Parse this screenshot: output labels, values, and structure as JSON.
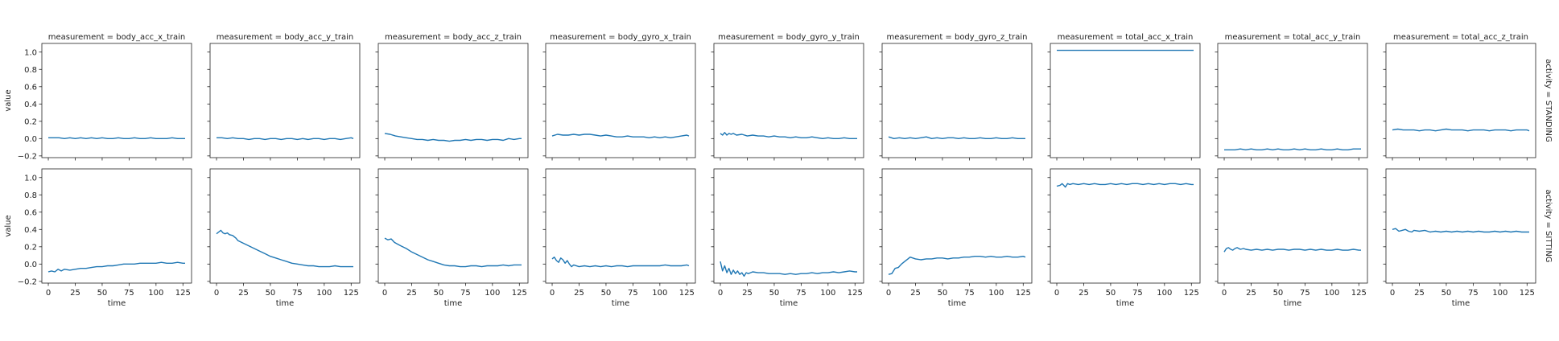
{
  "figure": {
    "axis_text_color": "#222222",
    "line_color": "#1f77b4"
  },
  "chart_data": {
    "type": "line",
    "facet_col_var": "measurement",
    "facet_row_var": "activity",
    "xlabel": "time",
    "ylabel": "value",
    "xlim": [
      -6,
      133
    ],
    "ylim": [
      -0.22,
      1.1
    ],
    "x_ticks": [
      0,
      25,
      50,
      75,
      100,
      125
    ],
    "y_ticks": [
      -0.2,
      0.0,
      0.2,
      0.4,
      0.6,
      0.8,
      1.0
    ],
    "y_tick_labels": [
      "−0.2",
      "0.0",
      "0.2",
      "0.4",
      "0.6",
      "0.8",
      "1.0"
    ],
    "columns": [
      {
        "title": "measurement = body_acc_x_train"
      },
      {
        "title": "measurement = body_acc_y_train"
      },
      {
        "title": "measurement = body_acc_z_train"
      },
      {
        "title": "measurement = body_gyro_x_train"
      },
      {
        "title": "measurement = body_gyro_y_train"
      },
      {
        "title": "measurement = body_gyro_z_train"
      },
      {
        "title": "measurement = total_acc_x_train"
      },
      {
        "title": "measurement = total_acc_y_train"
      },
      {
        "title": "measurement = total_acc_z_train"
      }
    ],
    "rows": [
      {
        "title": "activity = STANDING"
      },
      {
        "title": "activity = SITTING"
      }
    ],
    "series": [
      {
        "x": [
          0,
          5,
          10,
          15,
          20,
          25,
          30,
          35,
          40,
          45,
          50,
          55,
          60,
          65,
          70,
          75,
          80,
          85,
          90,
          95,
          100,
          105,
          110,
          115,
          120,
          125,
          127
        ],
        "y": [
          0.01,
          0.01,
          0.01,
          0.0,
          0.01,
          0.0,
          0.01,
          0.0,
          0.01,
          0.0,
          0.01,
          0.0,
          0.0,
          0.01,
          0.0,
          0.0,
          0.01,
          0.0,
          0.0,
          0.01,
          0.0,
          0.0,
          0.0,
          0.01,
          0.0,
          0.0,
          0.0
        ]
      },
      {
        "x": [
          0,
          5,
          10,
          15,
          20,
          25,
          30,
          35,
          40,
          45,
          50,
          55,
          60,
          65,
          70,
          75,
          80,
          85,
          90,
          95,
          100,
          105,
          110,
          115,
          120,
          125,
          127
        ],
        "y": [
          0.01,
          0.01,
          0.0,
          0.01,
          0.0,
          0.0,
          -0.01,
          0.0,
          0.0,
          -0.01,
          0.0,
          0.0,
          -0.01,
          0.0,
          0.0,
          -0.01,
          0.0,
          -0.01,
          0.0,
          0.0,
          -0.01,
          0.0,
          0.0,
          -0.01,
          0.0,
          0.01,
          0.0
        ]
      },
      {
        "x": [
          0,
          5,
          10,
          15,
          20,
          25,
          30,
          35,
          40,
          45,
          50,
          55,
          60,
          65,
          70,
          75,
          80,
          85,
          90,
          95,
          100,
          105,
          110,
          115,
          120,
          125,
          127
        ],
        "y": [
          0.06,
          0.05,
          0.03,
          0.02,
          0.01,
          0.0,
          -0.01,
          -0.01,
          -0.02,
          -0.01,
          -0.02,
          -0.02,
          -0.03,
          -0.02,
          -0.02,
          -0.01,
          -0.02,
          -0.01,
          -0.01,
          -0.02,
          -0.01,
          -0.01,
          -0.02,
          0.0,
          -0.01,
          0.0,
          0.0
        ]
      },
      {
        "x": [
          0,
          5,
          10,
          15,
          20,
          25,
          30,
          35,
          40,
          45,
          50,
          55,
          60,
          65,
          70,
          75,
          80,
          85,
          90,
          95,
          100,
          105,
          110,
          115,
          120,
          125,
          127
        ],
        "y": [
          0.03,
          0.05,
          0.04,
          0.04,
          0.05,
          0.04,
          0.05,
          0.05,
          0.04,
          0.03,
          0.04,
          0.03,
          0.02,
          0.02,
          0.03,
          0.02,
          0.02,
          0.02,
          0.01,
          0.02,
          0.01,
          0.02,
          0.01,
          0.02,
          0.03,
          0.04,
          0.03
        ]
      },
      {
        "x": [
          0,
          2,
          4,
          6,
          8,
          10,
          12,
          15,
          20,
          25,
          30,
          35,
          40,
          45,
          50,
          55,
          60,
          65,
          70,
          75,
          80,
          85,
          90,
          95,
          100,
          105,
          110,
          115,
          120,
          125,
          127
        ],
        "y": [
          0.06,
          0.04,
          0.07,
          0.04,
          0.06,
          0.05,
          0.06,
          0.04,
          0.05,
          0.03,
          0.04,
          0.03,
          0.03,
          0.02,
          0.03,
          0.02,
          0.02,
          0.01,
          0.02,
          0.01,
          0.01,
          0.02,
          0.01,
          0.0,
          0.01,
          0.0,
          0.0,
          0.01,
          0.0,
          0.0,
          0.0
        ]
      },
      {
        "x": [
          0,
          5,
          10,
          15,
          20,
          25,
          30,
          35,
          40,
          45,
          50,
          55,
          60,
          65,
          70,
          75,
          80,
          85,
          90,
          95,
          100,
          105,
          110,
          115,
          120,
          125,
          127
        ],
        "y": [
          0.02,
          0.0,
          0.01,
          0.0,
          0.01,
          0.0,
          0.01,
          0.02,
          0.0,
          0.01,
          0.0,
          0.01,
          0.01,
          0.0,
          0.01,
          0.0,
          0.0,
          0.01,
          0.0,
          0.0,
          0.01,
          0.0,
          0.0,
          0.01,
          0.0,
          0.0,
          0.0
        ]
      },
      {
        "x": [
          0,
          5,
          10,
          15,
          20,
          25,
          30,
          35,
          40,
          45,
          50,
          55,
          60,
          65,
          70,
          75,
          80,
          85,
          90,
          95,
          100,
          105,
          110,
          115,
          120,
          125,
          127
        ],
        "y": [
          1.02,
          1.02,
          1.02,
          1.02,
          1.02,
          1.02,
          1.02,
          1.02,
          1.02,
          1.02,
          1.02,
          1.02,
          1.02,
          1.02,
          1.02,
          1.02,
          1.02,
          1.02,
          1.02,
          1.02,
          1.02,
          1.02,
          1.02,
          1.02,
          1.02,
          1.02,
          1.02
        ]
      },
      {
        "x": [
          0,
          5,
          10,
          15,
          20,
          25,
          30,
          35,
          40,
          45,
          50,
          55,
          60,
          65,
          70,
          75,
          80,
          85,
          90,
          95,
          100,
          105,
          110,
          115,
          120,
          125,
          127
        ],
        "y": [
          -0.13,
          -0.13,
          -0.13,
          -0.12,
          -0.13,
          -0.12,
          -0.13,
          -0.13,
          -0.12,
          -0.13,
          -0.12,
          -0.13,
          -0.13,
          -0.12,
          -0.13,
          -0.12,
          -0.13,
          -0.13,
          -0.12,
          -0.13,
          -0.13,
          -0.12,
          -0.13,
          -0.13,
          -0.12,
          -0.12,
          -0.12
        ]
      },
      {
        "x": [
          0,
          5,
          10,
          15,
          20,
          25,
          30,
          35,
          40,
          45,
          50,
          55,
          60,
          65,
          70,
          75,
          80,
          85,
          90,
          95,
          100,
          105,
          110,
          115,
          120,
          125,
          127
        ],
        "y": [
          0.1,
          0.11,
          0.1,
          0.1,
          0.1,
          0.09,
          0.1,
          0.1,
          0.09,
          0.1,
          0.11,
          0.1,
          0.1,
          0.1,
          0.09,
          0.1,
          0.1,
          0.1,
          0.09,
          0.1,
          0.1,
          0.1,
          0.09,
          0.1,
          0.1,
          0.1,
          0.09
        ]
      },
      {
        "x": [
          0,
          3,
          6,
          9,
          12,
          15,
          20,
          25,
          30,
          35,
          40,
          45,
          50,
          55,
          60,
          65,
          70,
          75,
          80,
          85,
          90,
          95,
          100,
          105,
          110,
          115,
          120,
          125,
          127
        ],
        "y": [
          -0.09,
          -0.08,
          -0.09,
          -0.06,
          -0.08,
          -0.06,
          -0.07,
          -0.06,
          -0.05,
          -0.05,
          -0.04,
          -0.03,
          -0.03,
          -0.02,
          -0.02,
          -0.01,
          0.0,
          0.0,
          0.0,
          0.01,
          0.01,
          0.01,
          0.01,
          0.02,
          0.01,
          0.01,
          0.02,
          0.01,
          0.01
        ]
      },
      {
        "x": [
          0,
          2,
          4,
          6,
          8,
          10,
          12,
          15,
          18,
          20,
          25,
          30,
          35,
          40,
          45,
          50,
          55,
          60,
          65,
          70,
          75,
          80,
          85,
          90,
          95,
          100,
          105,
          110,
          115,
          120,
          125,
          127
        ],
        "y": [
          0.35,
          0.37,
          0.39,
          0.36,
          0.35,
          0.36,
          0.34,
          0.33,
          0.3,
          0.27,
          0.24,
          0.21,
          0.18,
          0.15,
          0.12,
          0.09,
          0.07,
          0.05,
          0.03,
          0.01,
          0.0,
          -0.01,
          -0.02,
          -0.02,
          -0.03,
          -0.03,
          -0.03,
          -0.02,
          -0.03,
          -0.03,
          -0.03,
          -0.03
        ]
      },
      {
        "x": [
          0,
          3,
          6,
          9,
          12,
          15,
          20,
          25,
          30,
          35,
          40,
          45,
          50,
          55,
          60,
          65,
          70,
          75,
          80,
          85,
          90,
          95,
          100,
          105,
          110,
          115,
          120,
          125,
          127
        ],
        "y": [
          0.3,
          0.28,
          0.29,
          0.25,
          0.23,
          0.21,
          0.18,
          0.14,
          0.11,
          0.08,
          0.05,
          0.03,
          0.01,
          -0.01,
          -0.02,
          -0.02,
          -0.03,
          -0.03,
          -0.02,
          -0.02,
          -0.03,
          -0.02,
          -0.02,
          -0.02,
          -0.01,
          -0.02,
          -0.01,
          -0.01,
          -0.01
        ]
      },
      {
        "x": [
          0,
          2,
          4,
          6,
          8,
          10,
          12,
          14,
          16,
          18,
          20,
          25,
          30,
          35,
          40,
          45,
          50,
          55,
          60,
          65,
          70,
          75,
          80,
          85,
          90,
          95,
          100,
          105,
          110,
          115,
          120,
          125,
          127
        ],
        "y": [
          0.06,
          0.08,
          0.04,
          0.02,
          0.07,
          0.05,
          0.01,
          0.04,
          0.0,
          -0.03,
          -0.01,
          -0.03,
          -0.02,
          -0.03,
          -0.02,
          -0.03,
          -0.02,
          -0.03,
          -0.02,
          -0.02,
          -0.03,
          -0.02,
          -0.02,
          -0.02,
          -0.02,
          -0.02,
          -0.02,
          -0.01,
          -0.02,
          -0.02,
          -0.02,
          -0.01,
          -0.02
        ]
      },
      {
        "x": [
          0,
          2,
          4,
          6,
          8,
          10,
          12,
          14,
          16,
          18,
          20,
          22,
          24,
          26,
          28,
          30,
          35,
          40,
          45,
          50,
          55,
          60,
          65,
          70,
          75,
          80,
          85,
          90,
          95,
          100,
          105,
          110,
          115,
          120,
          125,
          127
        ],
        "y": [
          0.03,
          -0.08,
          -0.02,
          -0.1,
          -0.05,
          -0.12,
          -0.07,
          -0.11,
          -0.08,
          -0.12,
          -0.1,
          -0.14,
          -0.1,
          -0.11,
          -0.1,
          -0.09,
          -0.1,
          -0.1,
          -0.11,
          -0.11,
          -0.11,
          -0.12,
          -0.11,
          -0.12,
          -0.11,
          -0.11,
          -0.1,
          -0.11,
          -0.1,
          -0.1,
          -0.09,
          -0.1,
          -0.09,
          -0.08,
          -0.09,
          -0.09
        ]
      },
      {
        "x": [
          0,
          3,
          6,
          9,
          12,
          15,
          18,
          20,
          25,
          30,
          35,
          40,
          45,
          50,
          55,
          60,
          65,
          70,
          75,
          80,
          85,
          90,
          95,
          100,
          105,
          110,
          115,
          120,
          125,
          127
        ],
        "y": [
          -0.12,
          -0.11,
          -0.05,
          -0.04,
          0.0,
          0.03,
          0.06,
          0.08,
          0.06,
          0.05,
          0.06,
          0.06,
          0.07,
          0.07,
          0.06,
          0.07,
          0.07,
          0.08,
          0.08,
          0.09,
          0.09,
          0.08,
          0.09,
          0.08,
          0.08,
          0.09,
          0.08,
          0.08,
          0.09,
          0.08
        ]
      },
      {
        "x": [
          0,
          3,
          5,
          8,
          10,
          12,
          15,
          20,
          25,
          30,
          35,
          40,
          45,
          50,
          55,
          60,
          65,
          70,
          75,
          80,
          85,
          90,
          95,
          100,
          105,
          110,
          115,
          120,
          125,
          127
        ],
        "y": [
          0.9,
          0.91,
          0.93,
          0.89,
          0.93,
          0.92,
          0.93,
          0.92,
          0.93,
          0.92,
          0.93,
          0.92,
          0.92,
          0.93,
          0.92,
          0.93,
          0.92,
          0.93,
          0.93,
          0.92,
          0.93,
          0.92,
          0.93,
          0.92,
          0.93,
          0.93,
          0.92,
          0.93,
          0.92,
          0.92
        ]
      },
      {
        "x": [
          0,
          2,
          4,
          6,
          8,
          10,
          12,
          15,
          18,
          20,
          25,
          30,
          35,
          40,
          45,
          50,
          55,
          60,
          65,
          70,
          75,
          80,
          85,
          90,
          95,
          100,
          105,
          110,
          115,
          120,
          125,
          127
        ],
        "y": [
          0.14,
          0.18,
          0.19,
          0.17,
          0.16,
          0.18,
          0.19,
          0.17,
          0.18,
          0.17,
          0.16,
          0.17,
          0.16,
          0.17,
          0.16,
          0.17,
          0.17,
          0.16,
          0.17,
          0.17,
          0.16,
          0.17,
          0.16,
          0.17,
          0.16,
          0.16,
          0.17,
          0.16,
          0.16,
          0.17,
          0.16,
          0.16
        ]
      },
      {
        "x": [
          0,
          3,
          6,
          9,
          12,
          15,
          18,
          20,
          25,
          30,
          35,
          40,
          45,
          50,
          55,
          60,
          65,
          70,
          75,
          80,
          85,
          90,
          95,
          100,
          105,
          110,
          115,
          120,
          125,
          127
        ],
        "y": [
          0.4,
          0.41,
          0.38,
          0.39,
          0.4,
          0.38,
          0.37,
          0.39,
          0.38,
          0.39,
          0.37,
          0.38,
          0.37,
          0.38,
          0.37,
          0.38,
          0.37,
          0.38,
          0.37,
          0.38,
          0.37,
          0.37,
          0.38,
          0.37,
          0.38,
          0.37,
          0.38,
          0.37,
          0.37,
          0.37
        ]
      }
    ]
  }
}
